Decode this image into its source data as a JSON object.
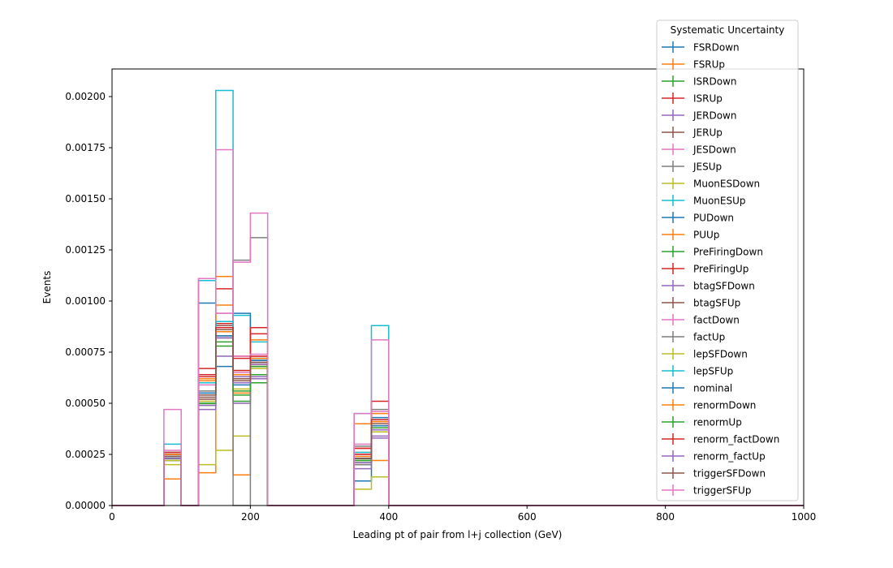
{
  "chart_data": {
    "type": "step-histogram",
    "title": "",
    "xlabel": "Leading pt of pair from l+j collection (GeV)",
    "ylabel": "Events",
    "xlim": [
      0,
      1000
    ],
    "ylim": [
      0,
      0.002135
    ],
    "xticks": [
      "0",
      "200",
      "400",
      "600",
      "800",
      "1000"
    ],
    "xtick_values": [
      0,
      200,
      400,
      600,
      800,
      1000
    ],
    "yticks": [
      "0.00000",
      "0.00025",
      "0.00050",
      "0.00075",
      "0.00100",
      "0.00125",
      "0.00150",
      "0.00175",
      "0.00200"
    ],
    "ytick_values": [
      0,
      0.00025,
      0.0005,
      0.00075,
      0.001,
      0.00125,
      0.0015,
      0.00175,
      0.002
    ],
    "grid": false,
    "legend": {
      "title": "Systematic Uncertainty",
      "position": "top-right-outside"
    },
    "bin_edges": [
      0,
      25,
      50,
      75,
      100,
      125,
      150,
      175,
      200,
      225,
      250,
      275,
      300,
      325,
      350,
      375,
      400,
      1000
    ],
    "series": [
      {
        "name": "FSRDown",
        "color": "#1f77b4",
        "values": [
          0,
          0,
          0,
          0.00022,
          0,
          0.00055,
          0.00068,
          0.0006,
          0.00072,
          0,
          0,
          0,
          0,
          0,
          0.00012,
          0.0004,
          0
        ]
      },
      {
        "name": "FSRUp",
        "color": "#ff7f0e",
        "values": [
          0,
          0,
          0,
          0.00013,
          0,
          0.00016,
          0.00098,
          0.00015,
          0.00069,
          0,
          0,
          0,
          0,
          0,
          0.00026,
          0.00022,
          0
        ]
      },
      {
        "name": "ISRDown",
        "color": "#2ca02c",
        "values": [
          0,
          0,
          0,
          0.00024,
          0,
          0.00049,
          0.00085,
          0.00051,
          0.00064,
          0,
          0,
          0,
          0,
          0,
          0.00022,
          0.00037,
          0
        ]
      },
      {
        "name": "ISRUp",
        "color": "#d62728",
        "values": [
          0,
          0,
          0,
          0.00026,
          0,
          0.00064,
          0.00106,
          0.00073,
          0.00084,
          0,
          0,
          0,
          0,
          0,
          0.00028,
          0.00041,
          0
        ]
      },
      {
        "name": "JERDown",
        "color": "#9467bd",
        "values": [
          0,
          0,
          0,
          0.00023,
          0,
          0.00061,
          0.00086,
          0.00063,
          0.00063,
          0,
          0,
          0,
          0,
          0,
          0.0002,
          0.00033,
          0
        ]
      },
      {
        "name": "JERUp",
        "color": "#8c564b",
        "values": [
          0,
          0,
          0,
          0.00024,
          0,
          0.00052,
          0.00088,
          0.00066,
          0.00071,
          0,
          0,
          0,
          0,
          0,
          0.00023,
          0.00038,
          0
        ]
      },
      {
        "name": "JESDown",
        "color": "#e377c2",
        "values": [
          0,
          0,
          0,
          0.00023,
          0,
          0.00059,
          0.00094,
          0.00065,
          0.00073,
          0,
          0,
          0,
          0,
          0,
          0.00025,
          0.00039,
          0
        ]
      },
      {
        "name": "JESUp",
        "color": "#7f7f7f",
        "values": [
          0,
          0,
          0,
          0.00024,
          0,
          0.00056,
          0.00083,
          0.0012,
          0.00131,
          0,
          0,
          0,
          0,
          0,
          0.00029,
          0.00047,
          0
        ]
      },
      {
        "name": "MuonESDown",
        "color": "#bcbd22",
        "values": [
          0,
          0,
          0,
          0.0002,
          0,
          0.0002,
          0.00027,
          0.00034,
          0.00068,
          0,
          0,
          0,
          0,
          0,
          8e-05,
          0.00014,
          0
        ]
      },
      {
        "name": "MuonESUp",
        "color": "#17becf",
        "values": [
          0,
          0,
          0,
          0.0003,
          0,
          0.0011,
          0.00203,
          0.00093,
          0.0008,
          0,
          0,
          0,
          0,
          0,
          0.00045,
          0.00088,
          0
        ]
      },
      {
        "name": "PUDown",
        "color": "#1f77b4",
        "values": [
          0,
          0,
          0,
          0.00024,
          0,
          0.00099,
          0.00083,
          0.00094,
          0.00071,
          0,
          0,
          0,
          0,
          0,
          0.00023,
          0.00043,
          0
        ]
      },
      {
        "name": "PUUp",
        "color": "#ff7f0e",
        "values": [
          0,
          0,
          0,
          0.00026,
          0,
          0.00062,
          0.00112,
          0.00055,
          0.00081,
          0,
          0,
          0,
          0,
          0,
          0.0004,
          0.00045,
          0
        ]
      },
      {
        "name": "PreFiringDown",
        "color": "#2ca02c",
        "values": [
          0,
          0,
          0,
          0.00023,
          0,
          0.0005,
          0.00078,
          0.00054,
          0.0006,
          0,
          0,
          0,
          0,
          0,
          0.00021,
          0.00038,
          0
        ]
      },
      {
        "name": "PreFiringUp",
        "color": "#d62728",
        "values": [
          0,
          0,
          0,
          0.00025,
          0,
          0.00067,
          0.00089,
          0.00072,
          0.00087,
          0,
          0,
          0,
          0,
          0,
          0.00028,
          0.00051,
          0
        ]
      },
      {
        "name": "btagSFDown",
        "color": "#9467bd",
        "values": [
          0,
          0,
          0,
          0.00023,
          0,
          0.00047,
          0.00073,
          0.0005,
          0.00062,
          0,
          0,
          0,
          0,
          0,
          0.00018,
          0.00034,
          0
        ]
      },
      {
        "name": "btagSFUp",
        "color": "#8c564b",
        "values": [
          0,
          0,
          0,
          0.00025,
          0,
          0.00053,
          0.00087,
          0.00062,
          0.0007,
          0,
          0,
          0,
          0,
          0,
          0.00023,
          0.0004,
          0
        ]
      },
      {
        "name": "factDown",
        "color": "#e377c2",
        "values": [
          0,
          0,
          0,
          0.00027,
          0,
          0.00111,
          0.00174,
          0.00073,
          0.00074,
          0,
          0,
          0,
          0,
          0,
          0.0003,
          0.00046,
          0
        ]
      },
      {
        "name": "factUp",
        "color": "#7f7f7f",
        "values": [
          0,
          0,
          0,
          0.00022,
          0,
          0.0006,
          0.00082,
          0.0,
          0.00068,
          0,
          0,
          0,
          0,
          0,
          0.0002,
          0.00036,
          0
        ]
      },
      {
        "name": "lepSFDown",
        "color": "#bcbd22",
        "values": [
          0,
          0,
          0,
          0.00022,
          0,
          0.00051,
          0.00082,
          0.00057,
          0.00067,
          0,
          0,
          0,
          0,
          0,
          0.00022,
          0.00036,
          0
        ]
      },
      {
        "name": "lepSFUp",
        "color": "#17becf",
        "values": [
          0,
          0,
          0,
          0.00026,
          0,
          0.0006,
          0.0009,
          0.00061,
          0.00072,
          0,
          0,
          0,
          0,
          0,
          0.00026,
          0.00042,
          0
        ]
      },
      {
        "name": "nominal",
        "color": "#1f77b4",
        "values": [
          0,
          0,
          0,
          0.00024,
          0,
          0.00055,
          0.00082,
          0.00059,
          0.0007,
          0,
          0,
          0,
          0,
          0,
          0.00023,
          0.00039,
          0
        ]
      },
      {
        "name": "renormDown",
        "color": "#ff7f0e",
        "values": [
          0,
          0,
          0,
          0.00025,
          0,
          0.00061,
          0.00085,
          0.00064,
          0.00072,
          0,
          0,
          0,
          0,
          0,
          0.00024,
          0.00041,
          0
        ]
      },
      {
        "name": "renormUp",
        "color": "#2ca02c",
        "values": [
          0,
          0,
          0,
          0.00023,
          0,
          0.0005,
          0.0008,
          0.00056,
          0.00068,
          0,
          0,
          0,
          0,
          0,
          0.00022,
          0.00037,
          0
        ]
      },
      {
        "name": "renorm_factDown",
        "color": "#d62728",
        "values": [
          0,
          0,
          0,
          0.00026,
          0,
          0.00063,
          0.00087,
          0.00066,
          0.00073,
          0,
          0,
          0,
          0,
          0,
          0.00025,
          0.00042,
          0
        ]
      },
      {
        "name": "renorm_factUp",
        "color": "#9467bd",
        "values": [
          0,
          0,
          0,
          0.00023,
          0,
          0.00049,
          0.00082,
          0.0006,
          0.00069,
          0,
          0,
          0,
          0,
          0,
          0.00021,
          0.00037,
          0
        ]
      },
      {
        "name": "triggerSFDown",
        "color": "#8c564b",
        "values": [
          0,
          0,
          0,
          0.00024,
          0,
          0.00054,
          0.00086,
          0.00061,
          0.0007,
          0,
          0,
          0,
          0,
          0,
          0.00023,
          0.0004,
          0
        ]
      },
      {
        "name": "triggerSFUp",
        "color": "#e377c2",
        "values": [
          0,
          0,
          0,
          0.00047,
          0,
          0.00111,
          0.00094,
          0.00119,
          0.00143,
          0,
          0,
          0,
          0,
          0,
          0.00045,
          0.00081,
          0
        ]
      }
    ]
  }
}
